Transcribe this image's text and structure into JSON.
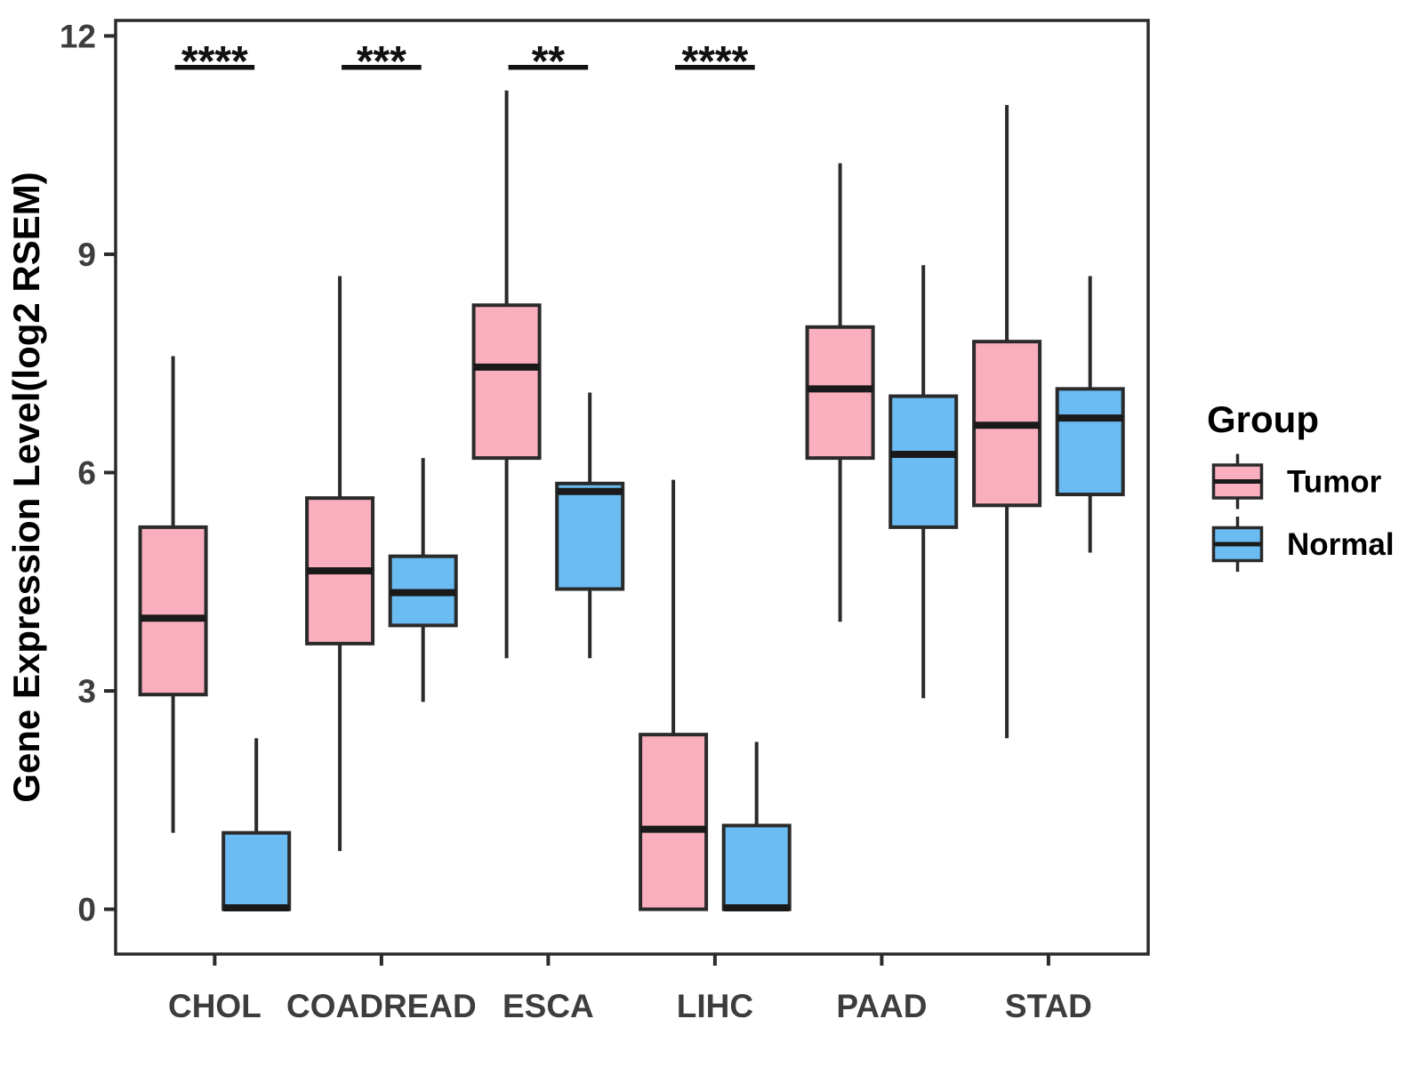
{
  "chart_data": {
    "type": "grouped_boxplot",
    "title": "",
    "xlabel": "",
    "ylabel": "Gene Expression Level(log2 RSEM)",
    "ylim": [
      -0.6,
      12.2
    ],
    "y_ticks": [
      0,
      3,
      6,
      9,
      12
    ],
    "grid": "off",
    "categories": [
      "CHOL",
      "COADREAD",
      "ESCA",
      "LIHC",
      "PAAD",
      "STAD"
    ],
    "groups": [
      {
        "name": "Tumor",
        "color": "#FAAFBE"
      },
      {
        "name": "Normal",
        "color": "#6ABCF2"
      }
    ],
    "series": [
      {
        "name": "Tumor",
        "boxes": [
          {
            "category": "CHOL",
            "whisker_low": 1.05,
            "q1": 2.95,
            "median": 4.0,
            "q3": 5.25,
            "whisker_high": 7.6
          },
          {
            "category": "COADREAD",
            "whisker_low": 0.8,
            "q1": 3.65,
            "median": 4.65,
            "q3": 5.65,
            "whisker_high": 8.7
          },
          {
            "category": "ESCA",
            "whisker_low": 3.45,
            "q1": 6.2,
            "median": 7.45,
            "q3": 8.3,
            "whisker_high": 11.25
          },
          {
            "category": "LIHC",
            "whisker_low": 0.0,
            "q1": 0.0,
            "median": 1.1,
            "q3": 2.4,
            "whisker_high": 5.9
          },
          {
            "category": "PAAD",
            "whisker_low": 3.95,
            "q1": 6.2,
            "median": 7.15,
            "q3": 8.0,
            "whisker_high": 10.25
          },
          {
            "category": "STAD",
            "whisker_low": 2.35,
            "q1": 5.55,
            "median": 6.65,
            "q3": 7.8,
            "whisker_high": 11.05
          }
        ]
      },
      {
        "name": "Normal",
        "boxes": [
          {
            "category": "CHOL",
            "whisker_low": 0.0,
            "q1": 0.0,
            "median": 0.02,
            "q3": 1.05,
            "whisker_high": 2.35
          },
          {
            "category": "COADREAD",
            "whisker_low": 2.85,
            "q1": 3.9,
            "median": 4.35,
            "q3": 4.85,
            "whisker_high": 6.2
          },
          {
            "category": "ESCA",
            "whisker_low": 3.45,
            "q1": 4.4,
            "median": 5.74,
            "q3": 5.85,
            "whisker_high": 7.1
          },
          {
            "category": "LIHC",
            "whisker_low": 0.0,
            "q1": 0.0,
            "median": 0.02,
            "q3": 1.15,
            "whisker_high": 2.3
          },
          {
            "category": "PAAD",
            "whisker_low": 2.9,
            "q1": 5.25,
            "median": 6.25,
            "q3": 7.05,
            "whisker_high": 8.85
          },
          {
            "category": "STAD",
            "whisker_low": 4.9,
            "q1": 5.7,
            "median": 6.75,
            "q3": 7.15,
            "whisker_high": 8.7
          }
        ]
      }
    ],
    "significance": [
      {
        "category": "CHOL",
        "label": "****"
      },
      {
        "category": "COADREAD",
        "label": "***"
      },
      {
        "category": "ESCA",
        "label": "**"
      },
      {
        "category": "LIHC",
        "label": "****"
      }
    ],
    "legend": {
      "title": "Group",
      "position": "right",
      "entries": [
        {
          "label": "Tumor",
          "color": "#FAAFBE"
        },
        {
          "label": "Normal",
          "color": "#6ABCF2"
        }
      ]
    },
    "colors": {
      "box_border": "#2a2a2a",
      "median_line": "#1a1a1a",
      "panel_border": "#2b2b2b",
      "tick_label": "#3d3d3d",
      "axis_title": "#000000",
      "significance": "#111111",
      "background": "#ffffff"
    }
  }
}
